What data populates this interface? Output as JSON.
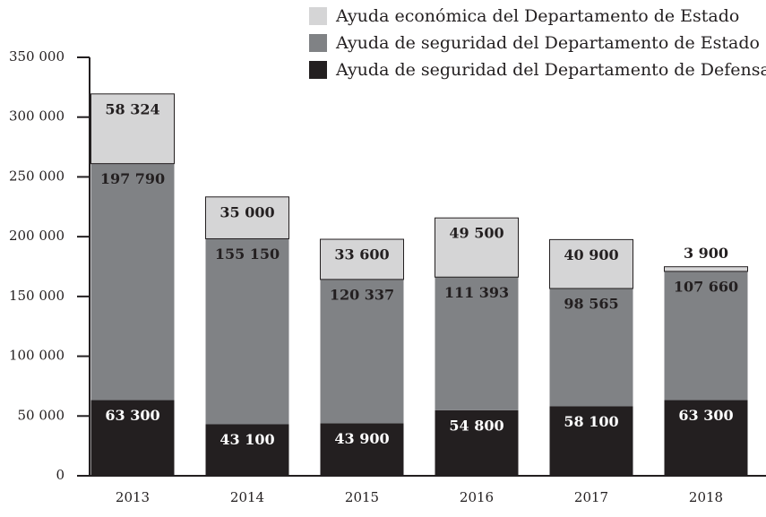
{
  "chart_data": {
    "type": "stacked_bar",
    "categories": [
      "2013",
      "2014",
      "2015",
      "2016",
      "2017",
      "2018"
    ],
    "series": [
      {
        "name": "Ayuda de seguridad del Departamento de Defensa",
        "color": "#231f20",
        "values": [
          63300,
          43100,
          43900,
          54800,
          58100,
          63300
        ],
        "value_labels": [
          "63 300",
          "43 100",
          "43 900",
          "54 800",
          "58 100",
          "63 300"
        ]
      },
      {
        "name": "Ayuda de seguridad del Departamento de Estado",
        "color": "#808285",
        "values": [
          197790,
          155150,
          120337,
          111393,
          98565,
          107660
        ],
        "value_labels": [
          "197 790",
          "155 150",
          "120 337",
          "111 393",
          "98 565",
          "107 660"
        ]
      },
      {
        "name": "Ayuda económica del Departamento de Estado",
        "color": "#d5d5d6",
        "values": [
          58324,
          35000,
          33600,
          49500,
          40900,
          3900
        ],
        "value_labels": [
          "58 324",
          "35 000",
          "33 600",
          "49 500",
          "40 900",
          "3 900"
        ]
      }
    ],
    "ylim": [
      0,
      350000
    ],
    "yticks": [
      0,
      {
        "value": 50000,
        "label": "50 000"
      },
      {
        "value": 100000,
        "label": "100 000"
      },
      {
        "value": 150000,
        "label": "150 000"
      },
      {
        "value": 200000,
        "label": "200 000"
      },
      {
        "value": 250000,
        "label": "250 000"
      },
      {
        "value": 300000,
        "label": "300 000"
      },
      {
        "value": 350000,
        "label": "350 000"
      }
    ],
    "legend": "top-right"
  }
}
